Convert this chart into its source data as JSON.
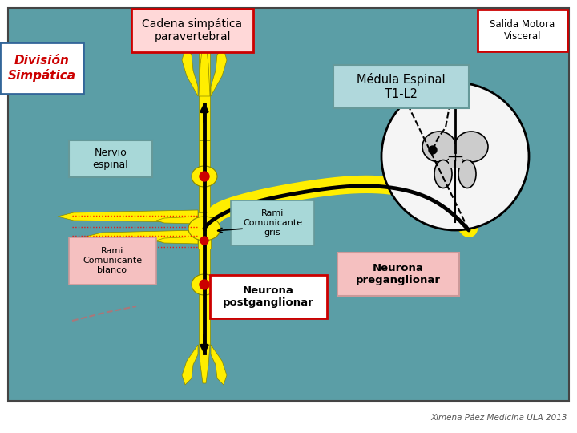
{
  "bg_color": "#5b9ea6",
  "yellow": "#FFEE00",
  "yellow_edge": "#888800",
  "red_box_edge": "#cc0000",
  "red_text": "#cc0000",
  "pink_bg": "#f5c0c0",
  "cyan_bg": "#a8d8d8",
  "white": "#ffffff",
  "black": "#000000",
  "red_dot": "#cc0000",
  "gray_matter": "#cccccc",
  "sc_white": "#f5f5f5",
  "title_salida": "Salida Motora\nVisceral",
  "title_cadena": "Cadena simpática\nparavertebral",
  "title_division": "División\nSimpática",
  "title_medula": "Médula Espinal\nT1-L2",
  "label_nervio": "Nervio\nespinal",
  "label_rami_gris": "Rami\nComunicante\ngris",
  "label_rami_blanco": "Rami\nComunicante\nblanco",
  "label_neurona_post": "Neurona\npostganglionar",
  "label_neurona_pre": "Neurona\npreganglionar",
  "credit": "Ximena Páez Medicina ULA 2013",
  "fig_w": 7.2,
  "fig_h": 5.4,
  "dpi": 100
}
